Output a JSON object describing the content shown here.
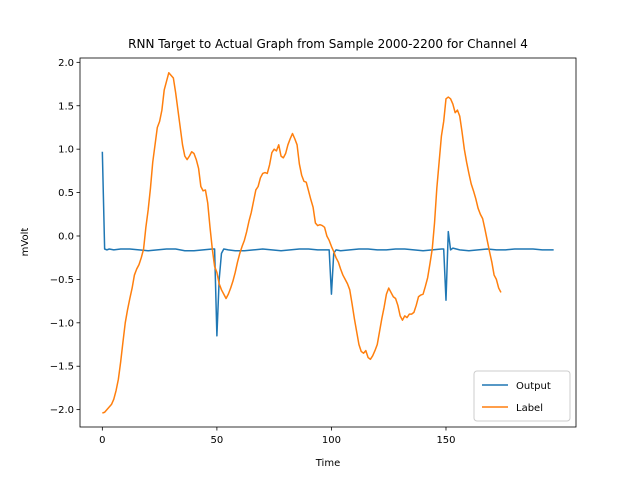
{
  "chart_data": {
    "type": "line",
    "title": "RNN Target to Actual Graph from Sample 2000-2200 for Channel 4",
    "xlabel": "Time",
    "ylabel": "mVolt",
    "xlim": [
      -9.75,
      206.75
    ],
    "ylim": [
      -2.2,
      2.05
    ],
    "xticks": [
      0,
      50,
      100,
      150
    ],
    "yticks": [
      -2.0,
      -1.5,
      -1.0,
      -0.5,
      0.0,
      0.5,
      1.0,
      1.5,
      2.0
    ],
    "xtick_labels": [
      "0",
      "50",
      "100",
      "150"
    ],
    "ytick_labels": [
      "−2.0",
      "−1.5",
      "−1.0",
      "−0.5",
      "0.0",
      "0.5",
      "1.0",
      "1.5",
      "2.0"
    ],
    "grid": false,
    "legend_position": "lower right",
    "series": [
      {
        "name": "Output",
        "color": "#1f77b4",
        "points": [
          [
            0,
            0.97
          ],
          [
            1,
            -0.15
          ],
          [
            2,
            -0.16
          ],
          [
            3,
            -0.15
          ],
          [
            5,
            -0.16
          ],
          [
            8,
            -0.15
          ],
          [
            12,
            -0.15
          ],
          [
            16,
            -0.16
          ],
          [
            20,
            -0.17
          ],
          [
            24,
            -0.16
          ],
          [
            28,
            -0.15
          ],
          [
            32,
            -0.15
          ],
          [
            36,
            -0.17
          ],
          [
            40,
            -0.17
          ],
          [
            44,
            -0.16
          ],
          [
            48,
            -0.15
          ],
          [
            49,
            -0.15
          ],
          [
            50,
            -1.15
          ],
          [
            51,
            -0.5
          ],
          [
            52,
            -0.2
          ],
          [
            53,
            -0.15
          ],
          [
            55,
            -0.16
          ],
          [
            58,
            -0.17
          ],
          [
            62,
            -0.17
          ],
          [
            66,
            -0.16
          ],
          [
            70,
            -0.15
          ],
          [
            74,
            -0.16
          ],
          [
            78,
            -0.17
          ],
          [
            82,
            -0.16
          ],
          [
            86,
            -0.15
          ],
          [
            90,
            -0.15
          ],
          [
            94,
            -0.16
          ],
          [
            98,
            -0.16
          ],
          [
            99,
            -0.16
          ],
          [
            100,
            -0.67
          ],
          [
            101,
            -0.2
          ],
          [
            102,
            -0.16
          ],
          [
            104,
            -0.17
          ],
          [
            108,
            -0.16
          ],
          [
            112,
            -0.15
          ],
          [
            116,
            -0.15
          ],
          [
            120,
            -0.16
          ],
          [
            124,
            -0.16
          ],
          [
            128,
            -0.15
          ],
          [
            132,
            -0.15
          ],
          [
            136,
            -0.16
          ],
          [
            140,
            -0.17
          ],
          [
            144,
            -0.16
          ],
          [
            148,
            -0.15
          ],
          [
            149,
            -0.15
          ],
          [
            150,
            -0.74
          ],
          [
            151,
            0.05
          ],
          [
            152,
            -0.16
          ],
          [
            153,
            -0.14
          ],
          [
            156,
            -0.16
          ],
          [
            160,
            -0.17
          ],
          [
            164,
            -0.16
          ],
          [
            168,
            -0.15
          ],
          [
            172,
            -0.16
          ],
          [
            176,
            -0.16
          ],
          [
            180,
            -0.15
          ],
          [
            184,
            -0.15
          ],
          [
            188,
            -0.15
          ],
          [
            192,
            -0.16
          ],
          [
            196,
            -0.16
          ],
          [
            197,
            -0.16
          ]
        ]
      },
      {
        "name": "Label",
        "color": "#ff7f0e",
        "points": [
          [
            0,
            -2.04
          ],
          [
            1,
            -2.03
          ],
          [
            2,
            -2.0
          ],
          [
            3,
            -1.97
          ],
          [
            4,
            -1.94
          ],
          [
            5,
            -1.88
          ],
          [
            6,
            -1.78
          ],
          [
            7,
            -1.65
          ],
          [
            8,
            -1.45
          ],
          [
            9,
            -1.22
          ],
          [
            10,
            -1.0
          ],
          [
            11,
            -0.85
          ],
          [
            12,
            -0.72
          ],
          [
            13,
            -0.6
          ],
          [
            14,
            -0.45
          ],
          [
            15,
            -0.38
          ],
          [
            16,
            -0.33
          ],
          [
            17,
            -0.25
          ],
          [
            18,
            -0.15
          ],
          [
            19,
            0.1
          ],
          [
            20,
            0.3
          ],
          [
            21,
            0.55
          ],
          [
            22,
            0.85
          ],
          [
            23,
            1.05
          ],
          [
            24,
            1.25
          ],
          [
            25,
            1.32
          ],
          [
            26,
            1.45
          ],
          [
            27,
            1.68
          ],
          [
            28,
            1.78
          ],
          [
            29,
            1.88
          ],
          [
            30,
            1.85
          ],
          [
            31,
            1.82
          ],
          [
            32,
            1.65
          ],
          [
            33,
            1.45
          ],
          [
            34,
            1.25
          ],
          [
            35,
            1.05
          ],
          [
            36,
            0.92
          ],
          [
            37,
            0.88
          ],
          [
            38,
            0.92
          ],
          [
            39,
            0.97
          ],
          [
            40,
            0.95
          ],
          [
            41,
            0.88
          ],
          [
            42,
            0.78
          ],
          [
            43,
            0.57
          ],
          [
            44,
            0.52
          ],
          [
            45,
            0.53
          ],
          [
            46,
            0.38
          ],
          [
            47,
            0.1
          ],
          [
            48,
            -0.15
          ],
          [
            49,
            -0.35
          ],
          [
            50,
            -0.42
          ],
          [
            51,
            -0.55
          ],
          [
            52,
            -0.62
          ],
          [
            53,
            -0.67
          ],
          [
            54,
            -0.72
          ],
          [
            55,
            -0.67
          ],
          [
            56,
            -0.6
          ],
          [
            57,
            -0.52
          ],
          [
            58,
            -0.42
          ],
          [
            59,
            -0.3
          ],
          [
            60,
            -0.2
          ],
          [
            61,
            -0.12
          ],
          [
            62,
            -0.05
          ],
          [
            63,
            0.05
          ],
          [
            64,
            0.17
          ],
          [
            65,
            0.27
          ],
          [
            66,
            0.4
          ],
          [
            67,
            0.53
          ],
          [
            68,
            0.57
          ],
          [
            69,
            0.67
          ],
          [
            70,
            0.72
          ],
          [
            71,
            0.73
          ],
          [
            72,
            0.72
          ],
          [
            73,
            0.82
          ],
          [
            74,
            0.96
          ],
          [
            75,
            1.0
          ],
          [
            76,
            0.98
          ],
          [
            77,
            1.05
          ],
          [
            78,
            0.92
          ],
          [
            79,
            0.9
          ],
          [
            80,
            0.95
          ],
          [
            81,
            1.05
          ],
          [
            82,
            1.12
          ],
          [
            83,
            1.18
          ],
          [
            84,
            1.12
          ],
          [
            85,
            1.05
          ],
          [
            86,
            0.83
          ],
          [
            87,
            0.7
          ],
          [
            88,
            0.63
          ],
          [
            89,
            0.62
          ],
          [
            90,
            0.52
          ],
          [
            91,
            0.42
          ],
          [
            92,
            0.33
          ],
          [
            93,
            0.15
          ],
          [
            94,
            0.12
          ],
          [
            95,
            0.13
          ],
          [
            96,
            0.12
          ],
          [
            97,
            0.1
          ],
          [
            98,
            0.0
          ],
          [
            99,
            -0.05
          ],
          [
            100,
            -0.12
          ],
          [
            101,
            -0.18
          ],
          [
            102,
            -0.25
          ],
          [
            103,
            -0.3
          ],
          [
            104,
            -0.38
          ],
          [
            105,
            -0.45
          ],
          [
            106,
            -0.5
          ],
          [
            107,
            -0.55
          ],
          [
            108,
            -0.62
          ],
          [
            109,
            -0.78
          ],
          [
            110,
            -0.95
          ],
          [
            111,
            -1.1
          ],
          [
            112,
            -1.25
          ],
          [
            113,
            -1.33
          ],
          [
            114,
            -1.35
          ],
          [
            115,
            -1.32
          ],
          [
            116,
            -1.4
          ],
          [
            117,
            -1.42
          ],
          [
            118,
            -1.38
          ],
          [
            119,
            -1.32
          ],
          [
            120,
            -1.25
          ],
          [
            121,
            -1.1
          ],
          [
            122,
            -0.95
          ],
          [
            123,
            -0.82
          ],
          [
            124,
            -0.67
          ],
          [
            125,
            -0.6
          ],
          [
            126,
            -0.65
          ],
          [
            127,
            -0.7
          ],
          [
            128,
            -0.72
          ],
          [
            129,
            -0.8
          ],
          [
            130,
            -0.92
          ],
          [
            131,
            -0.97
          ],
          [
            132,
            -0.92
          ],
          [
            133,
            -0.94
          ],
          [
            134,
            -0.9
          ],
          [
            135,
            -0.9
          ],
          [
            136,
            -0.88
          ],
          [
            137,
            -0.8
          ],
          [
            138,
            -0.7
          ],
          [
            139,
            -0.68
          ],
          [
            140,
            -0.67
          ],
          [
            141,
            -0.58
          ],
          [
            142,
            -0.48
          ],
          [
            143,
            -0.32
          ],
          [
            144,
            -0.15
          ],
          [
            145,
            0.15
          ],
          [
            146,
            0.55
          ],
          [
            147,
            0.85
          ],
          [
            148,
            1.15
          ],
          [
            149,
            1.32
          ],
          [
            150,
            1.58
          ],
          [
            151,
            1.6
          ],
          [
            152,
            1.58
          ],
          [
            153,
            1.52
          ],
          [
            154,
            1.42
          ],
          [
            155,
            1.45
          ],
          [
            156,
            1.38
          ],
          [
            157,
            1.2
          ],
          [
            158,
            1.0
          ],
          [
            159,
            0.85
          ],
          [
            160,
            0.72
          ],
          [
            161,
            0.6
          ],
          [
            162,
            0.52
          ],
          [
            163,
            0.43
          ],
          [
            164,
            0.32
          ],
          [
            165,
            0.25
          ],
          [
            166,
            0.2
          ],
          [
            167,
            0.08
          ],
          [
            168,
            -0.05
          ],
          [
            169,
            -0.18
          ],
          [
            170,
            -0.3
          ],
          [
            171,
            -0.45
          ],
          [
            172,
            -0.5
          ],
          [
            173,
            -0.6
          ],
          [
            174,
            -0.65
          ]
        ]
      }
    ]
  }
}
